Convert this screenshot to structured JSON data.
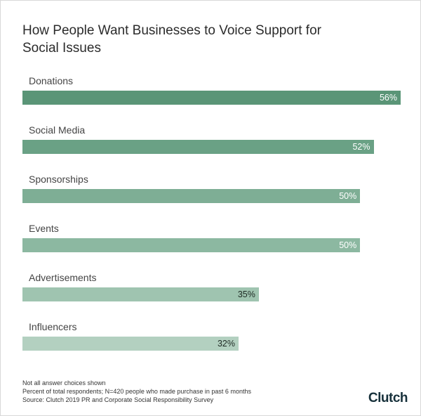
{
  "chart_data": {
    "type": "bar",
    "orientation": "horizontal",
    "title": "How People Want Businesses to Voice Support for Social Issues",
    "categories": [
      "Donations",
      "Social Media",
      "Sponsorships",
      "Events",
      "Advertisements",
      "Influencers"
    ],
    "values": [
      56,
      52,
      50,
      50,
      35,
      32
    ],
    "value_labels": [
      "56%",
      "52%",
      "50%",
      "50%",
      "35%",
      "32%"
    ],
    "colors": [
      "#5a9577",
      "#6aa185",
      "#7eae95",
      "#8cb8a1",
      "#9fc4b0",
      "#b3d0c0"
    ],
    "notes": [
      "Not all answer choices shown",
      "Percent of total respondents; N=420 people who made purchase in past 6 months",
      "Source: Clutch 2019 PR and Corporate Social Responsibility Survey"
    ],
    "brand": "Clutch"
  }
}
